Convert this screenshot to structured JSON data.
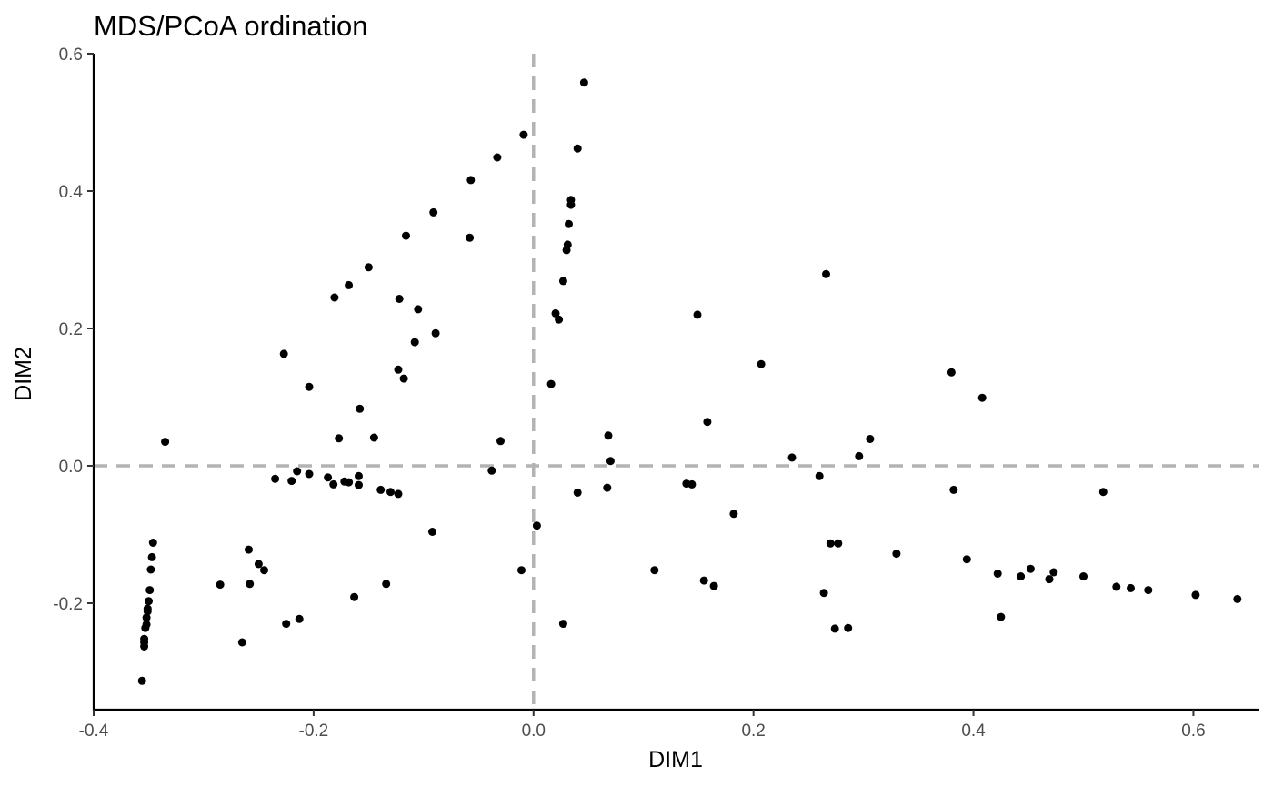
{
  "chart_data": {
    "type": "scatter",
    "title": "MDS/PCoA ordination",
    "xlabel": "DIM1",
    "ylabel": "DIM2",
    "xlim": [
      -0.4,
      0.66
    ],
    "ylim": [
      -0.355,
      0.6
    ],
    "x_ticks": [
      -0.4,
      -0.2,
      0.0,
      0.2,
      0.4,
      0.6
    ],
    "x_tick_labels": [
      "-0.4",
      "-0.2",
      "0.0",
      "0.2",
      "0.4",
      "0.6"
    ],
    "y_ticks": [
      -0.2,
      0.0,
      0.2,
      0.4,
      0.6
    ],
    "y_tick_labels": [
      "-0.2",
      "0.0",
      "0.2",
      "0.4",
      "0.6"
    ],
    "reference_lines": {
      "x": 0.0,
      "y": 0.0,
      "style": "dashed",
      "color": "#b3b3b3"
    },
    "grid": false,
    "point_color": "#000000",
    "points": [
      {
        "x": 0.046,
        "y": 0.558
      },
      {
        "x": -0.009,
        "y": 0.482
      },
      {
        "x": 0.04,
        "y": 0.462
      },
      {
        "x": -0.033,
        "y": 0.449
      },
      {
        "x": -0.057,
        "y": 0.416
      },
      {
        "x": 0.034,
        "y": 0.387
      },
      {
        "x": 0.034,
        "y": 0.38
      },
      {
        "x": -0.091,
        "y": 0.369
      },
      {
        "x": 0.032,
        "y": 0.352
      },
      {
        "x": -0.116,
        "y": 0.335
      },
      {
        "x": -0.058,
        "y": 0.332
      },
      {
        "x": 0.031,
        "y": 0.322
      },
      {
        "x": 0.03,
        "y": 0.314
      },
      {
        "x": -0.15,
        "y": 0.289
      },
      {
        "x": 0.266,
        "y": 0.279
      },
      {
        "x": 0.027,
        "y": 0.269
      },
      {
        "x": -0.168,
        "y": 0.263
      },
      {
        "x": -0.181,
        "y": 0.245
      },
      {
        "x": -0.122,
        "y": 0.243
      },
      {
        "x": -0.105,
        "y": 0.228
      },
      {
        "x": 0.02,
        "y": 0.222
      },
      {
        "x": 0.149,
        "y": 0.22
      },
      {
        "x": 0.023,
        "y": 0.213
      },
      {
        "x": -0.089,
        "y": 0.193
      },
      {
        "x": -0.108,
        "y": 0.18
      },
      {
        "x": -0.227,
        "y": 0.163
      },
      {
        "x": 0.207,
        "y": 0.148
      },
      {
        "x": -0.123,
        "y": 0.14
      },
      {
        "x": 0.38,
        "y": 0.136
      },
      {
        "x": -0.118,
        "y": 0.127
      },
      {
        "x": 0.016,
        "y": 0.119
      },
      {
        "x": -0.204,
        "y": 0.115
      },
      {
        "x": 0.408,
        "y": 0.099
      },
      {
        "x": -0.158,
        "y": 0.083
      },
      {
        "x": 0.158,
        "y": 0.064
      },
      {
        "x": 0.068,
        "y": 0.044
      },
      {
        "x": -0.145,
        "y": 0.041
      },
      {
        "x": -0.177,
        "y": 0.04
      },
      {
        "x": 0.306,
        "y": 0.039
      },
      {
        "x": -0.03,
        "y": 0.036
      },
      {
        "x": -0.335,
        "y": 0.035
      },
      {
        "x": 0.296,
        "y": 0.014
      },
      {
        "x": 0.235,
        "y": 0.012
      },
      {
        "x": 0.07,
        "y": 0.007
      },
      {
        "x": -0.038,
        "y": -0.007
      },
      {
        "x": -0.215,
        "y": -0.008
      },
      {
        "x": -0.204,
        "y": -0.012
      },
      {
        "x": 0.26,
        "y": -0.015
      },
      {
        "x": -0.159,
        "y": -0.015
      },
      {
        "x": -0.187,
        "y": -0.017
      },
      {
        "x": -0.235,
        "y": -0.019
      },
      {
        "x": -0.22,
        "y": -0.022
      },
      {
        "x": -0.172,
        "y": -0.023
      },
      {
        "x": -0.168,
        "y": -0.024
      },
      {
        "x": 0.139,
        "y": -0.026
      },
      {
        "x": -0.182,
        "y": -0.027
      },
      {
        "x": 0.144,
        "y": -0.027
      },
      {
        "x": -0.159,
        "y": -0.028
      },
      {
        "x": 0.067,
        "y": -0.032
      },
      {
        "x": 0.382,
        "y": -0.035
      },
      {
        "x": -0.139,
        "y": -0.035
      },
      {
        "x": -0.13,
        "y": -0.038
      },
      {
        "x": 0.518,
        "y": -0.038
      },
      {
        "x": 0.04,
        "y": -0.039
      },
      {
        "x": -0.123,
        "y": -0.041
      },
      {
        "x": 0.182,
        "y": -0.07
      },
      {
        "x": 0.003,
        "y": -0.087
      },
      {
        "x": -0.092,
        "y": -0.096
      },
      {
        "x": 0.27,
        "y": -0.113
      },
      {
        "x": 0.277,
        "y": -0.113
      },
      {
        "x": -0.346,
        "y": -0.112
      },
      {
        "x": -0.259,
        "y": -0.122
      },
      {
        "x": 0.33,
        "y": -0.128
      },
      {
        "x": -0.347,
        "y": -0.133
      },
      {
        "x": 0.394,
        "y": -0.136
      },
      {
        "x": -0.25,
        "y": -0.143
      },
      {
        "x": 0.452,
        "y": -0.15
      },
      {
        "x": -0.348,
        "y": -0.151
      },
      {
        "x": 0.11,
        "y": -0.152
      },
      {
        "x": -0.245,
        "y": -0.152
      },
      {
        "x": -0.011,
        "y": -0.152
      },
      {
        "x": 0.473,
        "y": -0.155
      },
      {
        "x": 0.422,
        "y": -0.157
      },
      {
        "x": 0.443,
        "y": -0.161
      },
      {
        "x": 0.5,
        "y": -0.161
      },
      {
        "x": 0.469,
        "y": -0.165
      },
      {
        "x": 0.155,
        "y": -0.167
      },
      {
        "x": -0.258,
        "y": -0.172
      },
      {
        "x": -0.285,
        "y": -0.173
      },
      {
        "x": -0.134,
        "y": -0.172
      },
      {
        "x": 0.164,
        "y": -0.175
      },
      {
        "x": 0.53,
        "y": -0.176
      },
      {
        "x": 0.543,
        "y": -0.178
      },
      {
        "x": -0.349,
        "y": -0.181
      },
      {
        "x": 0.559,
        "y": -0.181
      },
      {
        "x": 0.264,
        "y": -0.185
      },
      {
        "x": 0.602,
        "y": -0.188
      },
      {
        "x": -0.163,
        "y": -0.191
      },
      {
        "x": 0.64,
        "y": -0.194
      },
      {
        "x": -0.35,
        "y": -0.197
      },
      {
        "x": -0.351,
        "y": -0.208
      },
      {
        "x": -0.351,
        "y": -0.212
      },
      {
        "x": 0.425,
        "y": -0.22
      },
      {
        "x": -0.352,
        "y": -0.221
      },
      {
        "x": -0.213,
        "y": -0.223
      },
      {
        "x": -0.352,
        "y": -0.231
      },
      {
        "x": -0.225,
        "y": -0.23
      },
      {
        "x": 0.027,
        "y": -0.23
      },
      {
        "x": -0.353,
        "y": -0.236
      },
      {
        "x": 0.286,
        "y": -0.236
      },
      {
        "x": 0.274,
        "y": -0.237
      },
      {
        "x": -0.354,
        "y": -0.252
      },
      {
        "x": -0.265,
        "y": -0.257
      },
      {
        "x": -0.354,
        "y": -0.257
      },
      {
        "x": -0.354,
        "y": -0.263
      },
      {
        "x": -0.356,
        "y": -0.313
      }
    ]
  }
}
